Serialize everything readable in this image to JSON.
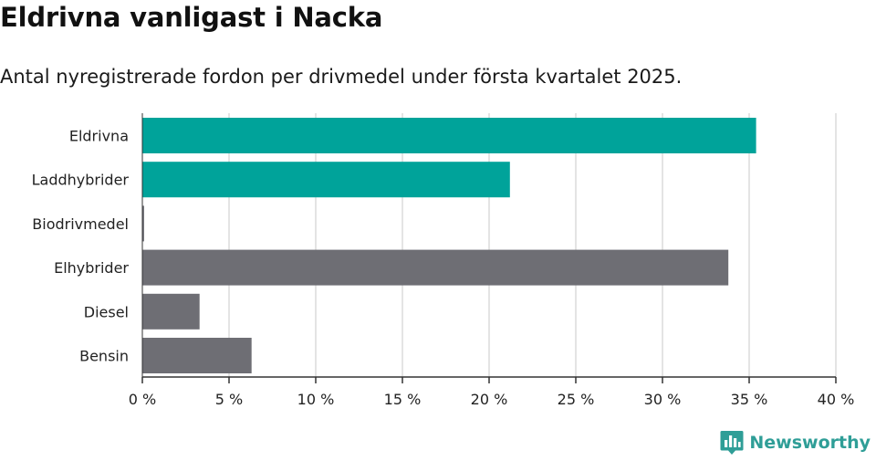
{
  "title": "Eldrivna vanligast i Nacka",
  "subtitle": "Antal nyregistrerade fordon per drivmedel under första kvartalet 2025.",
  "brand": {
    "name": "Newsworthy",
    "icon": "newsworthy-logo-icon",
    "color": "#2f9e97"
  },
  "chart_data": {
    "type": "bar",
    "orientation": "horizontal",
    "title": "",
    "xlabel": "",
    "ylabel": "",
    "categories": [
      "Eldrivna",
      "Laddhybrider",
      "Biodrivmedel",
      "Elhybrider",
      "Diesel",
      "Bensin"
    ],
    "values": [
      35.4,
      21.2,
      0.1,
      33.8,
      3.3,
      6.3
    ],
    "colors": [
      "#00a39a",
      "#00a39a",
      "#6e6e74",
      "#6e6e74",
      "#6e6e74",
      "#6e6e74"
    ],
    "xlim": [
      0,
      40
    ],
    "ticks": [
      0,
      5,
      10,
      15,
      20,
      25,
      30,
      35,
      40
    ],
    "tick_labels": [
      "0 %",
      "5 %",
      "10 %",
      "15 %",
      "20 %",
      "25 %",
      "30 %",
      "35 %",
      "40 %"
    ],
    "grid": "vertical",
    "legend": "none"
  }
}
